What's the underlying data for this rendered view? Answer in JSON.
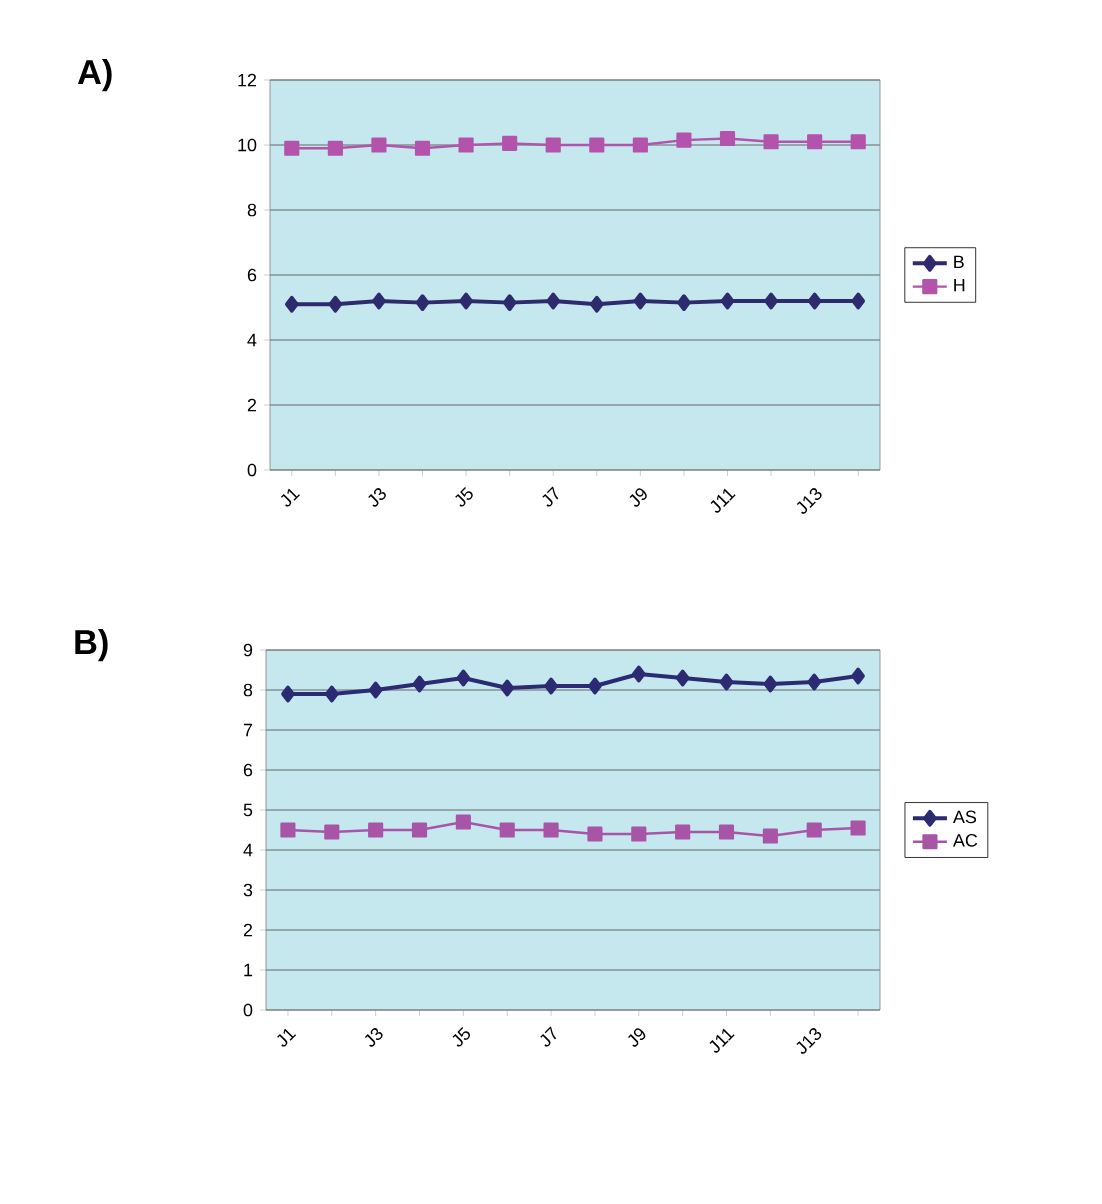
{
  "chart_data": [
    {
      "type": "line",
      "title": "A)",
      "categories": [
        "J1",
        null,
        "J3",
        null,
        "J5",
        null,
        "J7",
        null,
        "J9",
        null,
        "J11",
        null,
        "J13",
        null
      ],
      "series": [
        {
          "name": "B",
          "color": "#2e2a6e",
          "marker": "diamond",
          "values": [
            5.1,
            5.1,
            5.2,
            5.15,
            5.2,
            5.15,
            5.2,
            5.1,
            5.2,
            5.15,
            5.2,
            5.2,
            5.2,
            5.2
          ]
        },
        {
          "name": "H",
          "color": "#b353ab",
          "marker": "square",
          "values": [
            9.9,
            9.9,
            10.0,
            9.9,
            10.0,
            10.05,
            10.0,
            10.0,
            10.0,
            10.15,
            10.2,
            10.1,
            10.1,
            10.1
          ]
        }
      ],
      "ylim": [
        0,
        12
      ],
      "yticks": [
        0,
        2,
        4,
        6,
        8,
        10,
        12
      ],
      "grid": "y",
      "legend": "right",
      "line_style": "solid"
    },
    {
      "type": "line",
      "title": "B)",
      "categories": [
        "J1",
        null,
        "J3",
        null,
        "J5",
        null,
        "J7",
        null,
        "J9",
        null,
        "J11",
        null,
        "J13",
        null
      ],
      "series": [
        {
          "name": "AS",
          "color": "#2b2a73",
          "marker": "diamond",
          "values": [
            7.9,
            7.9,
            8.0,
            8.15,
            8.3,
            8.05,
            8.1,
            8.1,
            8.4,
            8.3,
            8.2,
            8.15,
            8.2,
            8.35
          ]
        },
        {
          "name": "AC",
          "color": "#a855a8",
          "marker": "square",
          "values": [
            4.5,
            4.45,
            4.5,
            4.5,
            4.7,
            4.5,
            4.5,
            4.4,
            4.4,
            4.45,
            4.45,
            4.35,
            4.5,
            4.55
          ]
        }
      ],
      "ylim": [
        0,
        9
      ],
      "yticks": [
        0,
        1,
        2,
        3,
        4,
        5,
        6,
        7,
        8,
        9
      ],
      "grid": "y",
      "legend": "right",
      "line_style": "solid"
    }
  ]
}
